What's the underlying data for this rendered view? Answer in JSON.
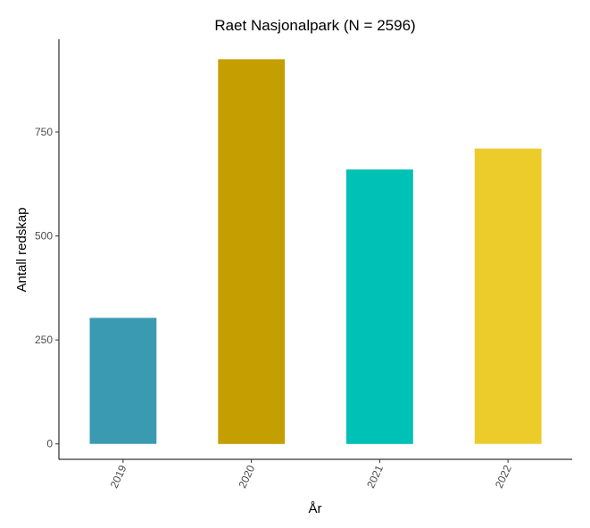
{
  "chart_data": {
    "type": "bar",
    "title": "Raet Nasjonalpark (N = 2596)",
    "xlabel": "År",
    "ylabel": "Antall redskap",
    "categories": [
      "2019",
      "2020",
      "2021",
      "2022"
    ],
    "values": [
      303,
      925,
      660,
      710
    ],
    "colors": [
      "#3A9AB2",
      "#C59E01",
      "#00C1B6",
      "#EBCC2A"
    ],
    "yticks": [
      0,
      250,
      500,
      750
    ],
    "ylim": [
      -37,
      973
    ],
    "grid": false,
    "legend": "none",
    "x_tick_rotation": -65
  }
}
